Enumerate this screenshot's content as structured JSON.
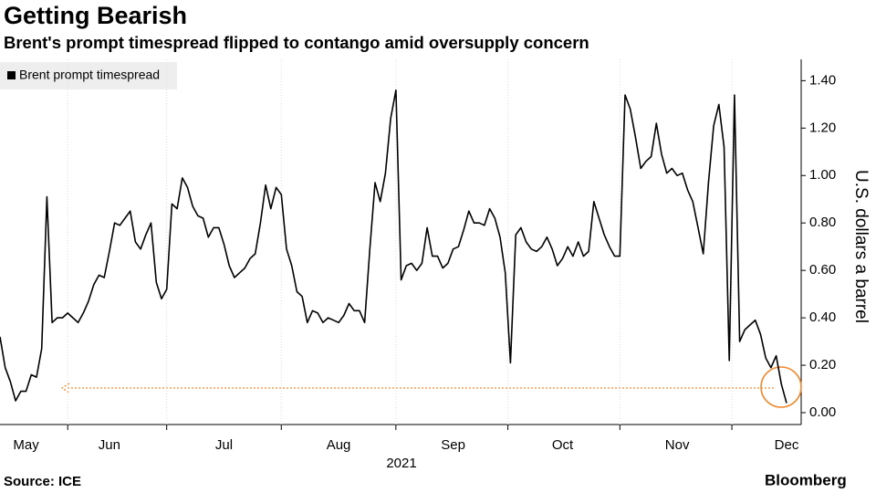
{
  "chart_data": {
    "type": "line",
    "title": "Getting Bearish",
    "subtitle": "Brent's prompt timespread flipped to contango amid oversupply concern",
    "y_label": "U.S. dollars a barrel",
    "x_label": "2021",
    "source": "Source: ICE",
    "brand": "Bloomberg",
    "legend": "upper left",
    "categories": [
      null,
      null,
      null,
      null,
      null,
      "May",
      null,
      null,
      null,
      null,
      null,
      null,
      null,
      null,
      null,
      null,
      null,
      null,
      null,
      null,
      null,
      "Jun",
      null,
      null,
      null,
      null,
      null,
      null,
      null,
      null,
      null,
      null,
      null,
      null,
      null,
      null,
      null,
      null,
      null,
      null,
      null,
      null,
      null,
      "Jul",
      null,
      null,
      null,
      null,
      null,
      null,
      null,
      null,
      null,
      null,
      null,
      null,
      null,
      null,
      null,
      null,
      null,
      null,
      null,
      null,
      null,
      "Aug",
      null,
      null,
      null,
      null,
      null,
      null,
      null,
      null,
      null,
      null,
      null,
      null,
      null,
      null,
      null,
      null,
      null,
      null,
      null,
      null,
      null,
      "Sep",
      null,
      null,
      null,
      null,
      null,
      null,
      null,
      null,
      null,
      null,
      null,
      null,
      null,
      null,
      null,
      null,
      null,
      null,
      null,
      null,
      "Oct",
      null,
      null,
      null,
      null,
      null,
      null,
      null,
      null,
      null,
      null,
      null,
      null,
      null,
      null,
      null,
      null,
      null,
      null,
      null,
      null,
      null,
      "Nov",
      null,
      null,
      null,
      null,
      null,
      null,
      null,
      null,
      null,
      null,
      null,
      null,
      null,
      null,
      null,
      null,
      null,
      null,
      null,
      null,
      "Dec"
    ],
    "series": [
      {
        "name": "Brent prompt timespread",
        "color": "#000000",
        "values": [
          0.32,
          0.19,
          0.13,
          0.05,
          0.09,
          0.09,
          0.16,
          0.15,
          0.27,
          0.91,
          0.38,
          0.4,
          0.4,
          0.42,
          0.4,
          0.38,
          0.42,
          0.47,
          0.54,
          0.58,
          0.57,
          0.68,
          0.8,
          0.79,
          0.82,
          0.85,
          0.72,
          0.69,
          0.75,
          0.8,
          0.55,
          0.48,
          0.52,
          0.88,
          0.86,
          0.99,
          0.95,
          0.87,
          0.83,
          0.82,
          0.74,
          0.78,
          0.78,
          0.71,
          0.62,
          0.57,
          0.59,
          0.61,
          0.65,
          0.67,
          0.8,
          0.96,
          0.86,
          0.95,
          0.92,
          0.69,
          0.62,
          0.51,
          0.49,
          0.38,
          0.43,
          0.42,
          0.38,
          0.4,
          0.39,
          0.38,
          0.41,
          0.46,
          0.43,
          0.43,
          0.38,
          0.69,
          0.97,
          0.89,
          1.01,
          1.24,
          1.36,
          0.56,
          0.62,
          0.63,
          0.6,
          0.63,
          0.78,
          0.66,
          0.66,
          0.61,
          0.63,
          0.69,
          0.7,
          0.77,
          0.85,
          0.8,
          0.8,
          0.79,
          0.86,
          0.82,
          0.74,
          0.59,
          0.21,
          0.75,
          0.78,
          0.72,
          0.69,
          0.68,
          0.7,
          0.74,
          0.69,
          0.62,
          0.65,
          0.7,
          0.66,
          0.72,
          0.66,
          0.68,
          0.89,
          0.82,
          0.75,
          0.7,
          0.66,
          0.66,
          1.34,
          1.28,
          1.16,
          1.03,
          1.06,
          1.08,
          1.22,
          1.09,
          1.01,
          1.03,
          1.0,
          1.01,
          0.94,
          0.89,
          0.78,
          0.67,
          0.97,
          1.21,
          1.3,
          1.12,
          0.22,
          1.34,
          0.3,
          0.35,
          0.37,
          0.39,
          0.33,
          0.23,
          0.19,
          0.24,
          0.12,
          0.04
        ]
      }
    ],
    "ylim": [
      -0.05,
      1.49
    ],
    "yticks": [
      {
        "value": 0,
        "label": "0.00"
      },
      {
        "value": 0.2,
        "label": "0.20"
      },
      {
        "value": 0.4,
        "label": "0.40"
      },
      {
        "value": 0.6,
        "label": "0.60"
      },
      {
        "value": 0.8,
        "label": "0.80"
      },
      {
        "value": 1.0,
        "label": "1.00"
      },
      {
        "value": 1.2,
        "label": "1.20"
      },
      {
        "value": 1.4,
        "label": "1.40"
      }
    ]
  }
}
